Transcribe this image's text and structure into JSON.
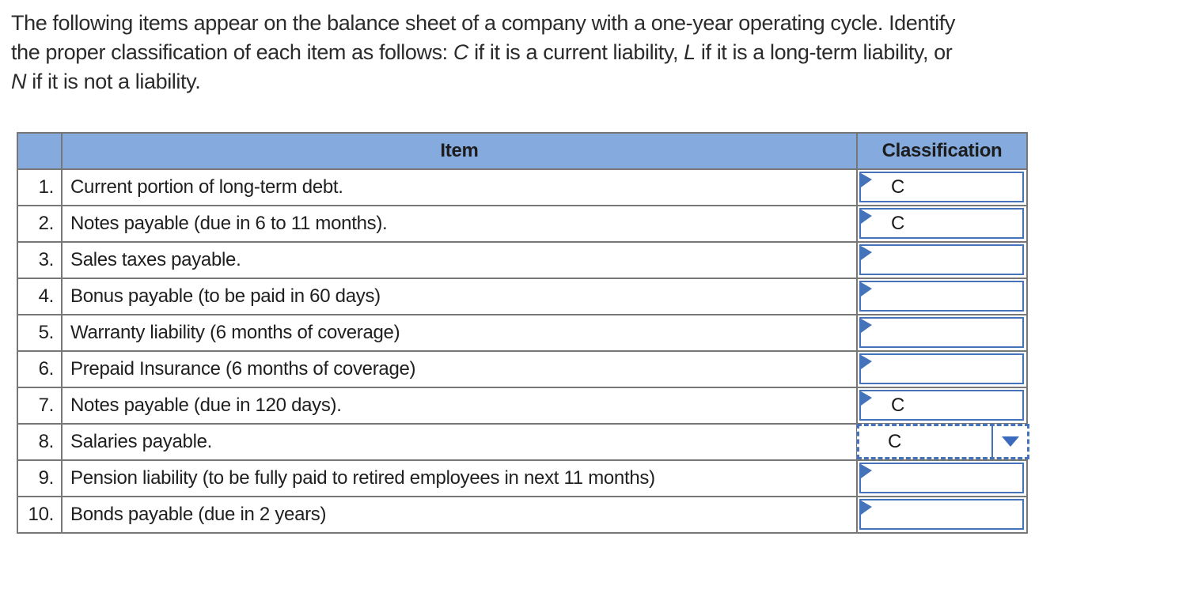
{
  "question": {
    "line1": "The following items appear on the balance sheet of a company with a one-year operating cycle. Identify",
    "line2_part1": "the proper classification of each item as follows: ",
    "line2_c": "C",
    "line2_part2": " if it is a current liability, ",
    "line2_l": "L",
    "line2_part3": " if it is a long-term liability, or",
    "line3_n": "N",
    "line3_part1": " if it is not a liability."
  },
  "table": {
    "headers": {
      "num": "",
      "item": "Item",
      "classification": "Classification"
    },
    "rows": [
      {
        "num": "1.",
        "item": "Current portion of long-term debt.",
        "value": "C",
        "state": "answered"
      },
      {
        "num": "2.",
        "item": "Notes payable (due in 6 to 11 months).",
        "value": "C",
        "state": "answered"
      },
      {
        "num": "3.",
        "item": "Sales taxes payable.",
        "value": "",
        "state": "empty"
      },
      {
        "num": "4.",
        "item": "Bonus payable (to be paid in 60 days)",
        "value": "",
        "state": "empty"
      },
      {
        "num": "5.",
        "item": "Warranty liability (6 months of coverage)",
        "value": "",
        "state": "empty"
      },
      {
        "num": "6.",
        "item": "Prepaid Insurance (6 months of coverage)",
        "value": "",
        "state": "empty"
      },
      {
        "num": "7.",
        "item": "Notes payable (due in 120 days).",
        "value": "C",
        "state": "answered"
      },
      {
        "num": "8.",
        "item": "Salaries payable.",
        "value": "C",
        "state": "focused-open"
      },
      {
        "num": "9.",
        "item": "Pension liability (to be fully paid to retired employees in next 11 months)",
        "value": "",
        "state": "empty"
      },
      {
        "num": "10.",
        "item": "Bonds payable (due in 2 years)",
        "value": "",
        "state": "empty"
      }
    ]
  },
  "icons": {
    "dropdown_flag": "corner-flag-icon",
    "dropdown_arrow": "chevron-down-icon"
  },
  "colors": {
    "header_bg": "#85aadd",
    "grid_border": "#777777",
    "accent_blue": "#4573b9",
    "text": "#1f1f1f"
  }
}
